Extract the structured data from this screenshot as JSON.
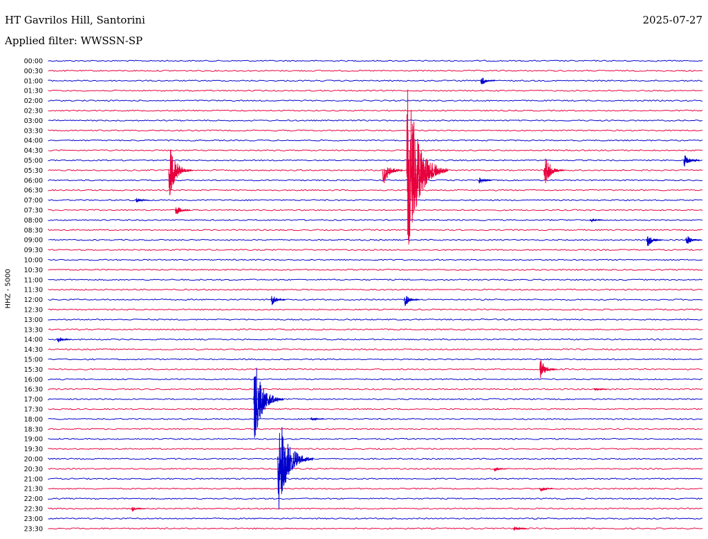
{
  "header": {
    "station": "HT Gavrilos Hill, Santorini",
    "date": "2025-07-27",
    "filter": "Applied filter: WWSSN-SP"
  },
  "chart_data": {
    "type": "helicorder",
    "title": "HT Gavrilos Hill, Santorini",
    "ylabel": "HHZ - 5000",
    "row_labels": [
      "00:00",
      "00:30",
      "01:00",
      "01:30",
      "02:00",
      "02:30",
      "03:00",
      "03:30",
      "04:00",
      "04:30",
      "05:00",
      "05:30",
      "06:00",
      "06:30",
      "07:00",
      "07:30",
      "08:00",
      "08:30",
      "09:00",
      "09:30",
      "10:00",
      "10:30",
      "11:00",
      "11:30",
      "12:00",
      "12:30",
      "13:00",
      "13:30",
      "14:00",
      "14:30",
      "15:00",
      "15:30",
      "16:00",
      "16:30",
      "17:00",
      "17:30",
      "18:00",
      "18:30",
      "19:00",
      "19:30",
      "20:00",
      "20:30",
      "21:00",
      "21:30",
      "22:00",
      "22:30",
      "23:00",
      "23:30"
    ],
    "row_minutes": 30,
    "colors": [
      "#0000cc",
      "#e8003c"
    ],
    "events": [
      {
        "row": "05:30",
        "minute": 5.5,
        "amplitude": 2.8
      },
      {
        "row": "05:30",
        "minute": 15.3,
        "amplitude": 1.8
      },
      {
        "row": "05:30",
        "minute": 16.4,
        "amplitude": 9.5
      },
      {
        "row": "05:30",
        "minute": 22.7,
        "amplitude": 1.8
      },
      {
        "row": "05:00",
        "minute": 29.1,
        "amplitude": 0.8
      },
      {
        "row": "12:00",
        "minute": 10.2,
        "amplitude": 0.6
      },
      {
        "row": "12:00",
        "minute": 16.3,
        "amplitude": 0.7
      },
      {
        "row": "15:30",
        "minute": 22.5,
        "amplitude": 1.2
      },
      {
        "row": "17:00",
        "minute": 9.4,
        "amplitude": 4.3
      },
      {
        "row": "20:00",
        "minute": 10.5,
        "amplitude": 5.5
      },
      {
        "row": "09:00",
        "minute": 27.4,
        "amplitude": 0.8
      },
      {
        "row": "09:00",
        "minute": 29.2,
        "amplitude": 0.6
      },
      {
        "row": "14:00",
        "minute": 0.4,
        "amplitude": 0.4
      },
      {
        "row": "07:30",
        "minute": 5.8,
        "amplitude": 0.6
      },
      {
        "row": "01:00",
        "minute": 19.8,
        "amplitude": 0.5
      },
      {
        "row": "06:00",
        "minute": 19.7,
        "amplitude": 0.4
      },
      {
        "row": "21:30",
        "minute": 22.5,
        "amplitude": 0.35
      },
      {
        "row": "20:30",
        "minute": 20.4,
        "amplitude": 0.3
      },
      {
        "row": "23:30",
        "minute": 21.3,
        "amplitude": 0.3
      },
      {
        "row": "22:30",
        "minute": 3.8,
        "amplitude": 0.3
      },
      {
        "row": "07:00",
        "minute": 4.0,
        "amplitude": 0.3
      },
      {
        "row": "18:00",
        "minute": 12.0,
        "amplitude": 0.2
      },
      {
        "row": "08:00",
        "minute": 24.8,
        "amplitude": 0.25
      },
      {
        "row": "16:30",
        "minute": 25.0,
        "amplitude": 0.2
      }
    ]
  }
}
